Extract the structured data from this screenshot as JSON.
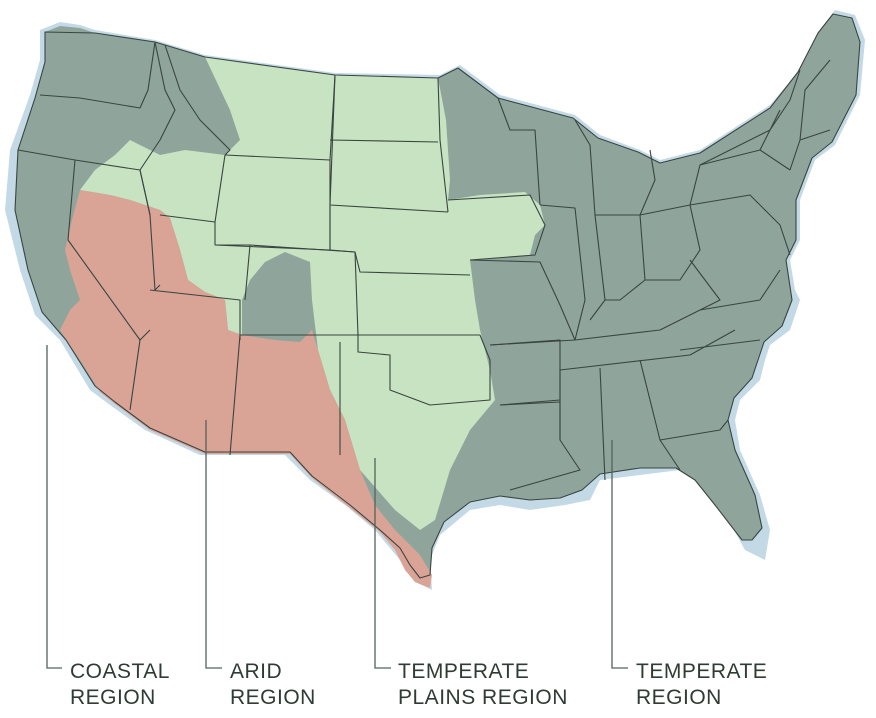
{
  "colors": {
    "coastal": "#c3d9e5",
    "arid": "#d9a396",
    "temperate_plains": "#c7e3c1",
    "temperate": "#8fa59c",
    "state_lines": "#394540",
    "label_text": "#2f3b34"
  },
  "legend": [
    {
      "line1": "COASTAL",
      "line2": "REGION",
      "region": "coastal"
    },
    {
      "line1": "ARID",
      "line2": "REGION",
      "region": "arid"
    },
    {
      "line1": "TEMPERATE",
      "line2": "PLAINS REGION",
      "region": "temperate_plains"
    },
    {
      "line1": "TEMPERATE",
      "line2": "REGION",
      "region": "temperate"
    }
  ]
}
